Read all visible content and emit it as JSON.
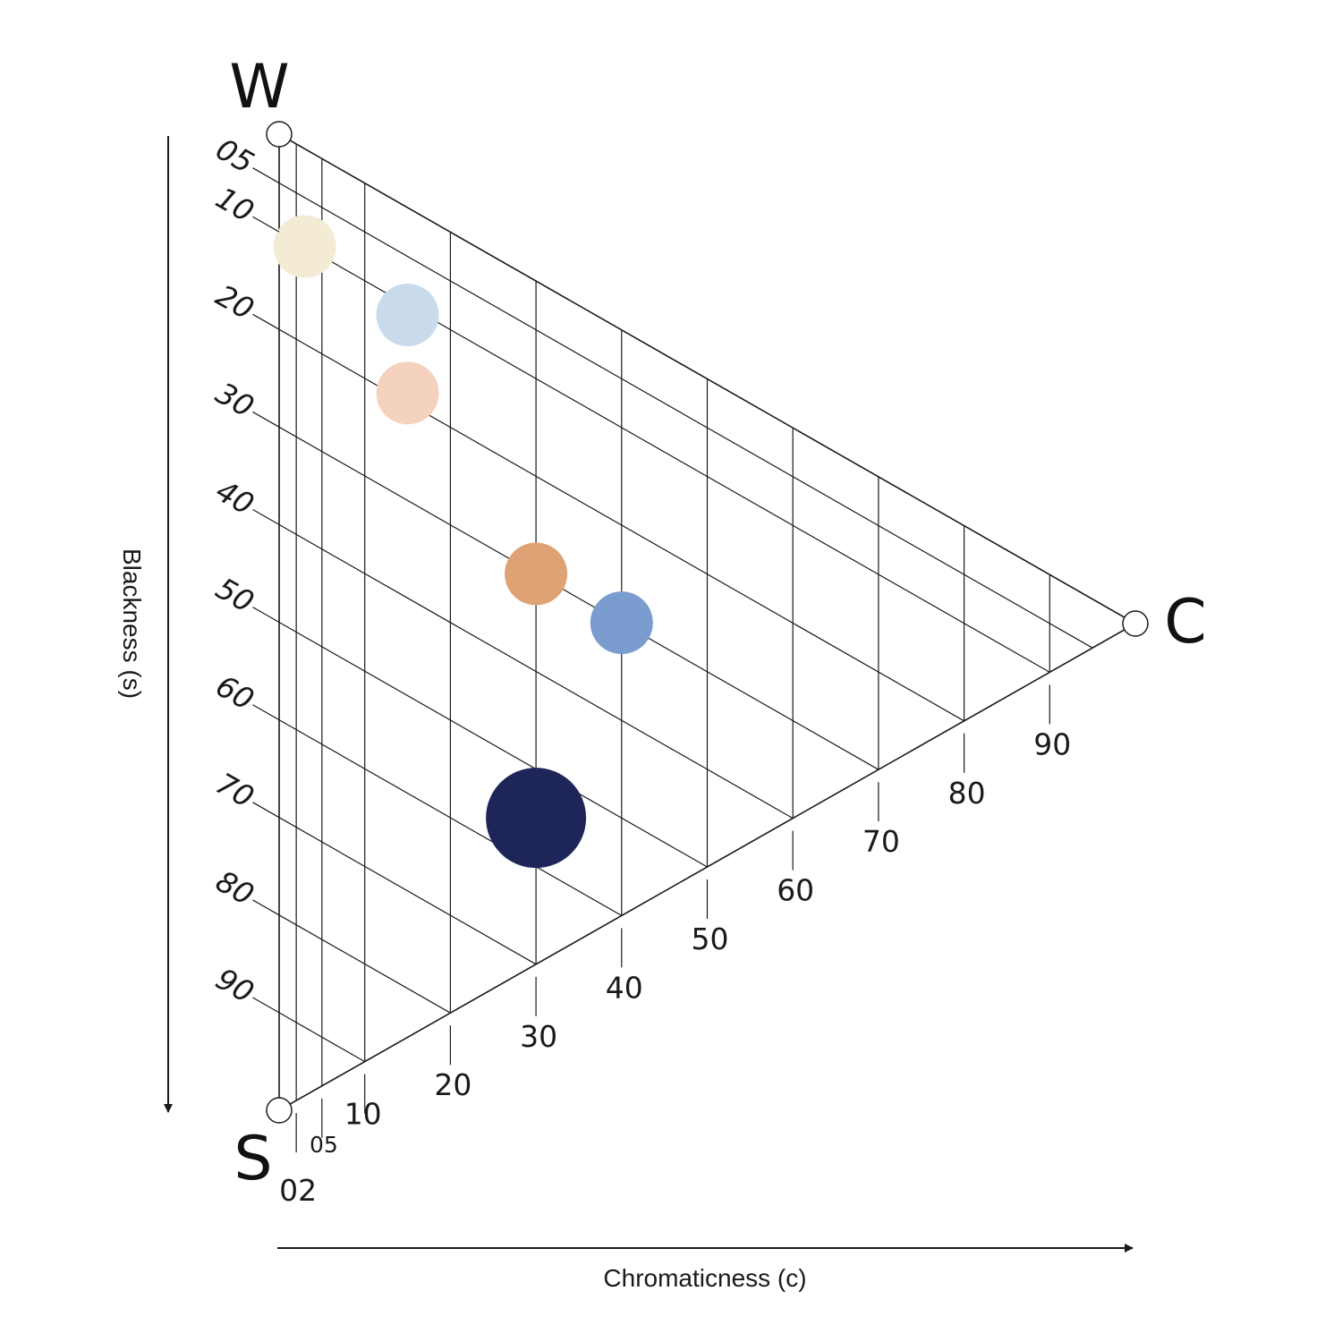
{
  "vertices": {
    "white": "W",
    "chromatic": "C",
    "black": "S"
  },
  "axes": {
    "blackness_label": "Blackness (s)",
    "blackness_ticks": [
      "05",
      "10",
      "20",
      "30",
      "40",
      "50",
      "60",
      "70",
      "80",
      "90"
    ],
    "chromaticness_label": "Chromaticness (c)",
    "chromaticness_ticks": [
      "02",
      "05",
      "10",
      "20",
      "30",
      "40",
      "50",
      "60",
      "70",
      "80",
      "90"
    ]
  },
  "samples": [
    {
      "name": "cream",
      "s": 10,
      "c": 3,
      "color": "#F3EBD3"
    },
    {
      "name": "light-blue",
      "s": 11,
      "c": 15,
      "color": "#C9DAEC"
    },
    {
      "name": "peach",
      "s": 19,
      "c": 15,
      "color": "#F5D2BE"
    },
    {
      "name": "orange",
      "s": 30,
      "c": 30,
      "color": "#DFA274"
    },
    {
      "name": "blue",
      "s": 30,
      "c": 40,
      "color": "#7A9CCF"
    },
    {
      "name": "navy",
      "s": 55,
      "c": 30,
      "color": "#1E2659"
    }
  ],
  "colors": {
    "line": "#1a1a1a",
    "text": "#1a1a1a",
    "background": "#ffffff"
  }
}
